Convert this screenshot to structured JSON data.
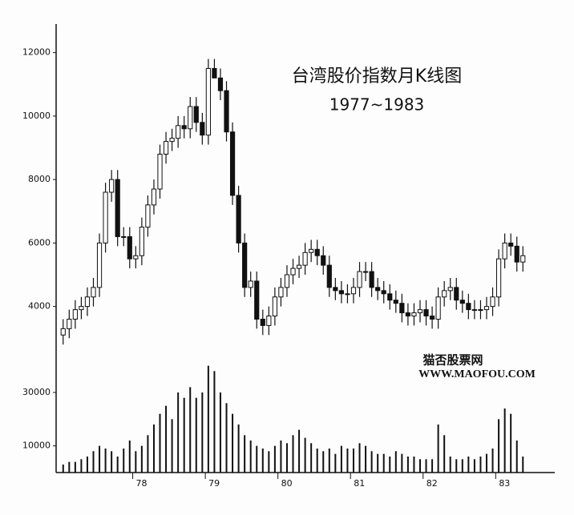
{
  "chart_data": [
    {
      "type": "candlestick",
      "title": "台湾股价指数月K线图",
      "subtitle": "1977~1983",
      "annotations": [
        "猫否股票网",
        "WWW.MAOFOU.COM"
      ],
      "color_up": "#ffffff",
      "color_down": "#111111",
      "open": [
        3100,
        3300,
        3600,
        3900,
        4000,
        4300,
        4600,
        6000,
        7600,
        8000,
        6200,
        6200,
        5500,
        5600,
        6500,
        7200,
        7700,
        8800,
        9200,
        9300,
        9700,
        9600,
        10300,
        9800,
        9400,
        11500,
        11200,
        10800,
        9500,
        7500,
        6000,
        4600,
        4800,
        3600,
        3400,
        3700,
        4300,
        4600,
        5000,
        5200,
        5300,
        5700,
        5800,
        5600,
        5300,
        4600,
        4500,
        4400,
        4400,
        4600,
        5100,
        5100,
        4600,
        4500,
        4400,
        4200,
        4100,
        3800,
        3700,
        3800,
        3900,
        3700,
        3600,
        4300,
        4500,
        4600,
        4200,
        4100,
        3900,
        3900,
        3900,
        4000,
        4300,
        5500,
        6000,
        5900,
        5400
      ],
      "high": [
        3600,
        3900,
        4200,
        4300,
        4600,
        4900,
        6300,
        7900,
        8300,
        8300,
        6500,
        6500,
        5900,
        6800,
        7500,
        8000,
        9100,
        9500,
        9600,
        10000,
        10000,
        10600,
        10600,
        10100,
        11800,
        11800,
        11500,
        11100,
        9800,
        7800,
        6300,
        5100,
        5100,
        3900,
        4000,
        4600,
        4900,
        5300,
        5500,
        5600,
        6000,
        6100,
        6100,
        5900,
        5600,
        4900,
        4800,
        4700,
        4900,
        5400,
        5400,
        5400,
        4900,
        4800,
        4700,
        4500,
        4400,
        4100,
        4100,
        4200,
        4200,
        4000,
        4600,
        4800,
        4900,
        4900,
        4500,
        4400,
        4200,
        4200,
        4300,
        4600,
        5800,
        6300,
        6300,
        6200,
        5900
      ],
      "low": [
        2800,
        3000,
        3300,
        3600,
        3700,
        4000,
        4300,
        5700,
        7300,
        5900,
        5900,
        5200,
        5200,
        5300,
        6200,
        6900,
        7400,
        8500,
        8900,
        9000,
        9300,
        9300,
        9500,
        9100,
        9100,
        11200,
        10500,
        9200,
        7200,
        5700,
        4300,
        4300,
        3300,
        3100,
        3100,
        3400,
        4000,
        4300,
        4700,
        4900,
        5000,
        5400,
        5300,
        5000,
        4300,
        4200,
        4100,
        4100,
        4100,
        4300,
        4800,
        4300,
        4200,
        4100,
        3900,
        3800,
        3500,
        3400,
        3400,
        3500,
        3400,
        3300,
        3300,
        4000,
        4200,
        3900,
        3800,
        3600,
        3600,
        3600,
        3600,
        3700,
        4000,
        5200,
        5600,
        5100,
        5100
      ],
      "close": [
        3300,
        3600,
        3900,
        4000,
        4300,
        4600,
        6000,
        7600,
        8000,
        6200,
        6200,
        5500,
        5600,
        6500,
        7200,
        7700,
        8800,
        9200,
        9300,
        9700,
        9600,
        10300,
        9800,
        9400,
        11500,
        11200,
        10800,
        9500,
        7500,
        6000,
        4600,
        4800,
        3600,
        3400,
        3700,
        4300,
        4600,
        5000,
        5200,
        5300,
        5700,
        5800,
        5600,
        5300,
        4600,
        4500,
        4400,
        4400,
        4600,
        5100,
        5100,
        4600,
        4500,
        4400,
        4200,
        4100,
        3800,
        3700,
        3800,
        3900,
        3700,
        3600,
        4300,
        4500,
        4600,
        4200,
        4100,
        3900,
        3900,
        3900,
        4000,
        4300,
        5500,
        6000,
        5900,
        5400,
        5600
      ],
      "ylim": [
        2300,
        12900
      ],
      "yticks": [
        4000,
        6000,
        8000,
        10000,
        12000
      ]
    },
    {
      "type": "bar",
      "color": "#111111",
      "values": [
        3000,
        4000,
        4000,
        5000,
        6000,
        8000,
        10000,
        9000,
        8000,
        6000,
        9000,
        12000,
        8000,
        10000,
        14000,
        18000,
        22000,
        25000,
        20000,
        30000,
        28000,
        32000,
        28000,
        30000,
        40000,
        38000,
        30000,
        26000,
        22000,
        18000,
        14000,
        12000,
        10000,
        9000,
        8000,
        10000,
        12000,
        11000,
        14000,
        16000,
        13000,
        11000,
        9000,
        8000,
        9000,
        7000,
        10000,
        9000,
        9000,
        11000,
        10000,
        8000,
        7000,
        7000,
        6000,
        8000,
        7000,
        6000,
        6000,
        5000,
        5000,
        5000,
        18000,
        14000,
        6000,
        5000,
        5000,
        6000,
        5000,
        6000,
        7000,
        9000,
        20000,
        24000,
        22000,
        12000,
        6000
      ],
      "ylim": [
        0,
        45000
      ],
      "yticks": [
        10000,
        30000
      ],
      "xlim": [
        -0.5,
        81
      ],
      "xticks": [
        {
          "value": 12,
          "label": "78"
        },
        {
          "value": 24,
          "label": "79"
        },
        {
          "value": 36,
          "label": "80"
        },
        {
          "value": 48,
          "label": "81"
        },
        {
          "value": 60,
          "label": "82"
        },
        {
          "value": 72,
          "label": "83"
        }
      ]
    }
  ]
}
